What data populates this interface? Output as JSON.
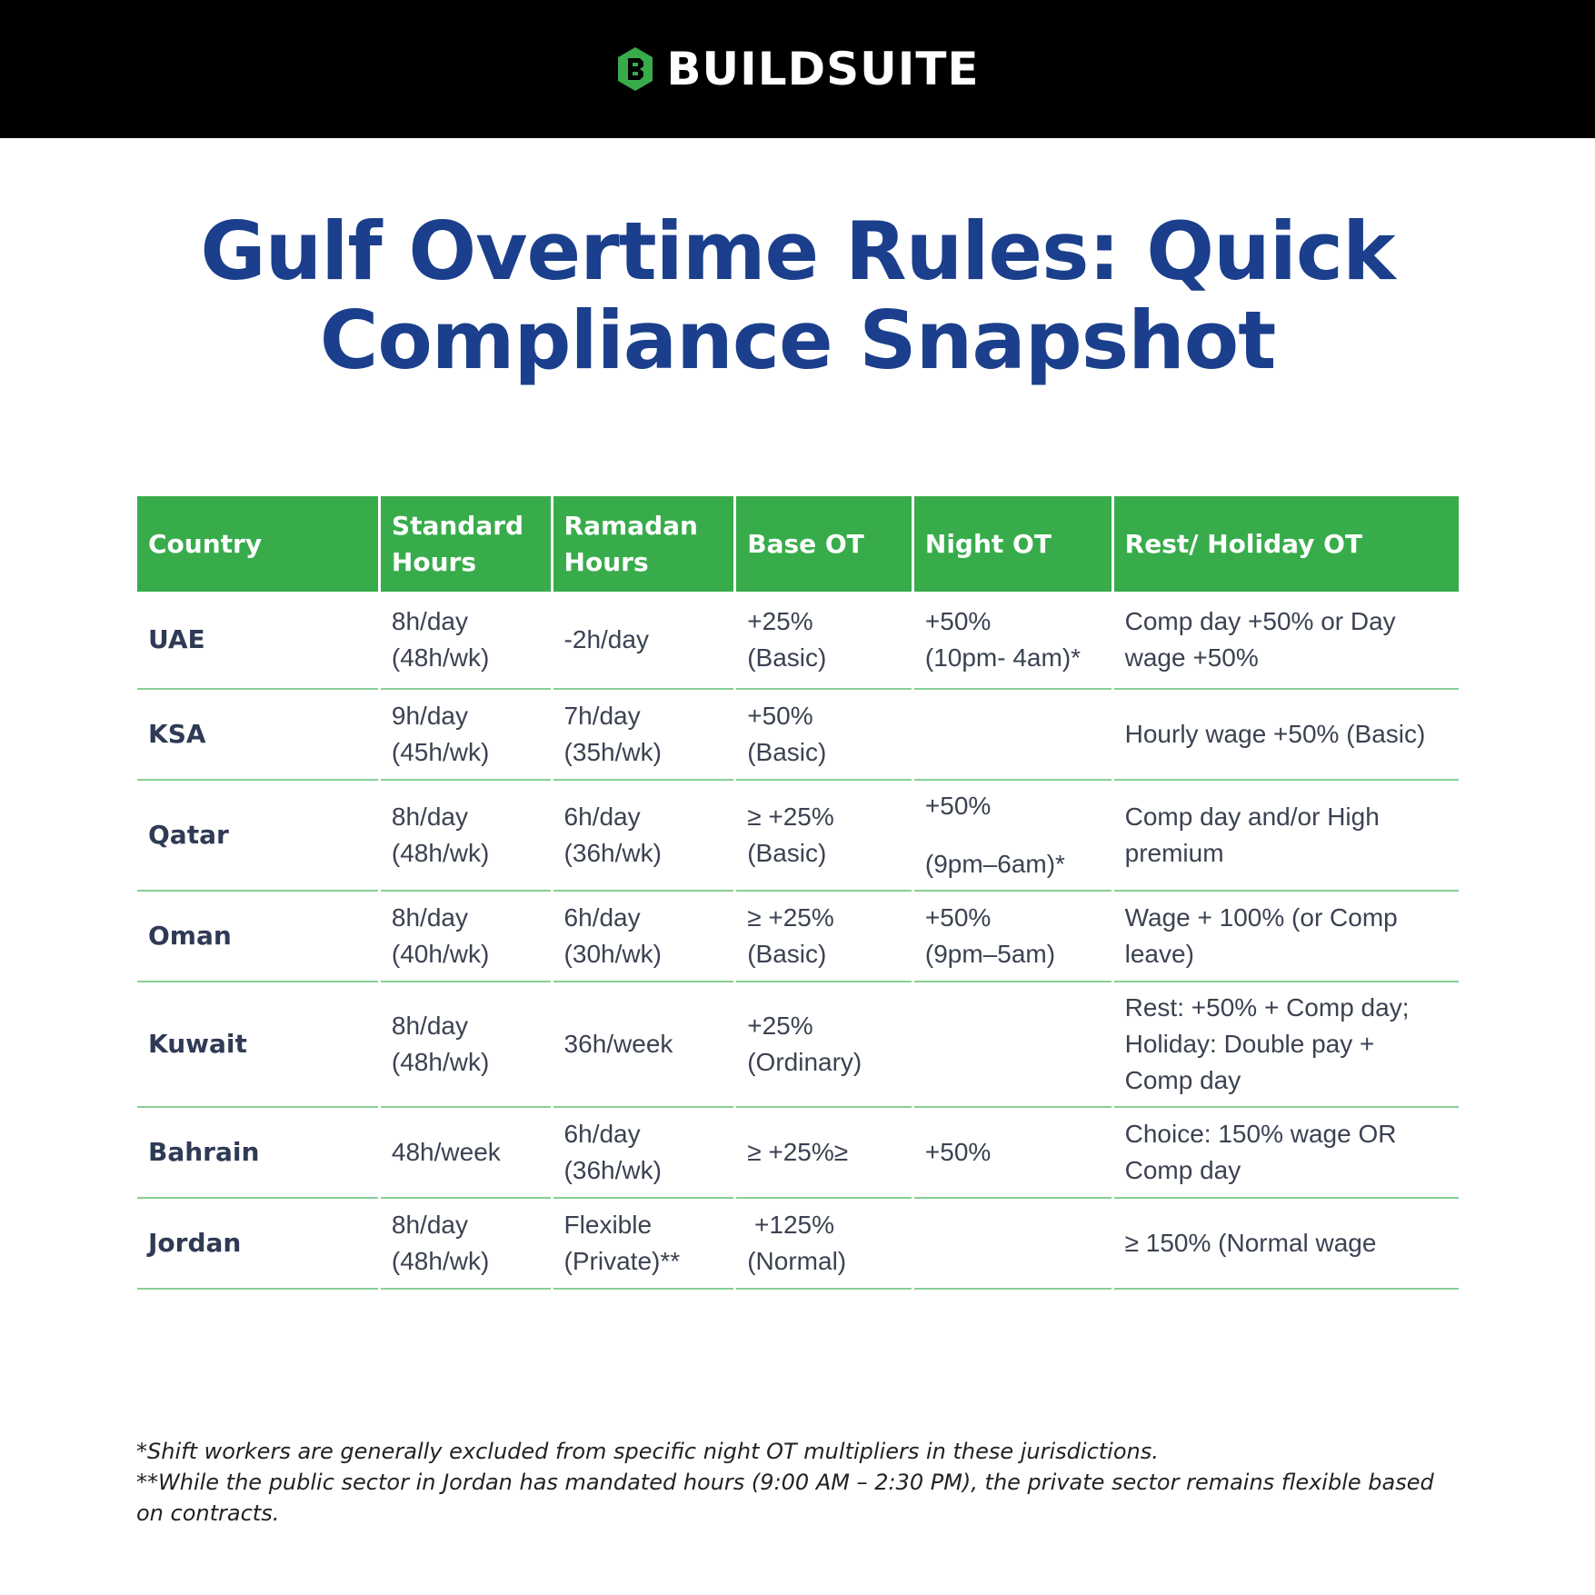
{
  "brand": {
    "name": "BUILDSUITE",
    "logo_color": "#38ac4b"
  },
  "title": {
    "line1": "Gulf Overtime Rules: Quick",
    "line2": "Compliance Snapshot"
  },
  "table": {
    "headers": [
      "Country",
      "Standard Hours",
      "Ramadan Hours",
      "Base OT",
      "Night OT",
      "Rest/ Holiday OT"
    ],
    "rows": [
      {
        "country": "UAE",
        "standard": [
          "8h/day",
          "(48h/wk)"
        ],
        "ramadan": [
          "-2h/day"
        ],
        "base": [
          "+25%",
          "(Basic)"
        ],
        "night": [
          "+50%",
          "(10pm- 4am)*"
        ],
        "rest": [
          "Comp day +50% or Day",
          "wage +50%"
        ]
      },
      {
        "country": "KSA",
        "standard": [
          "9h/day",
          "(45h/wk)"
        ],
        "ramadan": [
          "7h/day",
          "(35h/wk)"
        ],
        "base": [
          "+50%",
          "(Basic)"
        ],
        "night": [],
        "rest": [
          "Hourly wage +50% (Basic)"
        ]
      },
      {
        "country": "Qatar",
        "standard": [
          "8h/day",
          "(48h/wk)"
        ],
        "ramadan": [
          "6h/day",
          "(36h/wk)"
        ],
        "base": [
          "≥ +25%",
          "(Basic)"
        ],
        "night": [
          "+50%",
          "(9pm–6am)*"
        ],
        "rest": [
          "Comp day and/or High",
          "premium"
        ]
      },
      {
        "country": "Oman",
        "standard": [
          "8h/day",
          "(40h/wk)"
        ],
        "ramadan": [
          "6h/day",
          "(30h/wk)"
        ],
        "base": [
          "≥ +25%",
          "(Basic)"
        ],
        "night": [
          "+50%",
          "(9pm–5am)"
        ],
        "rest": [
          "Wage + 100% (or Comp",
          "leave)"
        ]
      },
      {
        "country": "Kuwait",
        "standard": [
          "8h/day",
          "(48h/wk)"
        ],
        "ramadan": [
          "36h/week"
        ],
        "base": [
          "+25%",
          "(Ordinary)"
        ],
        "night": [],
        "rest": [
          "Rest: +50% + Comp day;",
          "Holiday: Double pay +",
          "Comp day"
        ]
      },
      {
        "country": "Bahrain",
        "standard": [
          "48h/week"
        ],
        "ramadan": [
          "6h/day",
          "(36h/wk)"
        ],
        "base": [
          "≥ +25%≥"
        ],
        "night": [
          "+50%"
        ],
        "rest": [
          "Choice: 150% wage OR",
          "Comp day"
        ]
      },
      {
        "country": "Jordan",
        "standard": [
          "8h/day",
          "(48h/wk)"
        ],
        "ramadan": [
          "Flexible",
          "(Private)**"
        ],
        "base": [
          " +125%",
          "(Normal)"
        ],
        "night": [],
        "rest": [
          "≥ 150% (Normal wage"
        ]
      }
    ]
  },
  "footnotes": [
    "*Shift workers are generally excluded from specific night OT multipliers in these jurisdictions.",
    "**While the public sector in Jordan has mandated hours (9:00 AM – 2:30 PM), the private sector remains flexible based on contracts."
  ],
  "colors": {
    "header_green": "#38ac4b",
    "title_blue": "#1b3f8c",
    "row_line": "#86cf95"
  }
}
